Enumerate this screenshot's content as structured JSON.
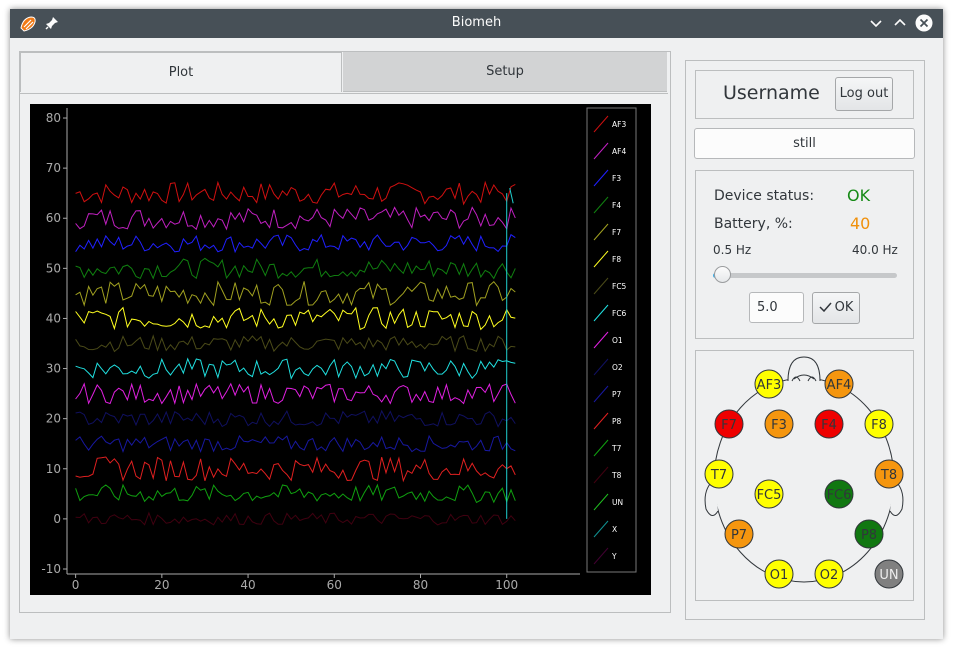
{
  "window": {
    "title": "Biomeh"
  },
  "tabs": [
    {
      "label": "Plot"
    },
    {
      "label": "Setup"
    }
  ],
  "chart_data": {
    "type": "line",
    "xlim": [
      -2,
      117
    ],
    "ylim": [
      -11,
      82
    ],
    "x_ticks": [
      0,
      20,
      40,
      60,
      80,
      100
    ],
    "y_ticks": [
      -10,
      0,
      10,
      20,
      30,
      40,
      50,
      60,
      70,
      80
    ],
    "legend_position": "right",
    "series": [
      {
        "name": "AF3",
        "color": "#d01010",
        "offset": 65,
        "amp": 2.2
      },
      {
        "name": "AF4",
        "color": "#c020c0",
        "offset": 60,
        "amp": 2.2
      },
      {
        "name": "F3",
        "color": "#2020ff",
        "offset": 55,
        "amp": 1.8
      },
      {
        "name": "F4",
        "color": "#108010",
        "offset": 50,
        "amp": 2.0
      },
      {
        "name": "F7",
        "color": "#a0a020",
        "offset": 45,
        "amp": 2.4
      },
      {
        "name": "F8",
        "color": "#ffff20",
        "offset": 40,
        "amp": 2.2
      },
      {
        "name": "FC5",
        "color": "#4a4a18",
        "offset": 35,
        "amp": 1.6
      },
      {
        "name": "FC6",
        "color": "#20e0e0",
        "offset": 30,
        "amp": 2.0
      },
      {
        "name": "O1",
        "color": "#e020e0",
        "offset": 25,
        "amp": 2.0
      },
      {
        "name": "O2",
        "color": "#101060",
        "offset": 20,
        "amp": 1.6
      },
      {
        "name": "P7",
        "color": "#1818a0",
        "offset": 15,
        "amp": 1.6
      },
      {
        "name": "P8",
        "color": "#e02020",
        "offset": 10,
        "amp": 2.4
      },
      {
        "name": "T7",
        "color": "#10a010",
        "offset": 5,
        "amp": 1.8
      },
      {
        "name": "T8",
        "color": "#400010",
        "offset": 0,
        "amp": 1.2
      },
      {
        "name": "UN",
        "color": "#20c020",
        "offset": null,
        "amp": 0
      },
      {
        "name": "X",
        "color": "#109090",
        "offset": null,
        "amp": 0
      },
      {
        "name": "Y",
        "color": "#400030",
        "offset": null,
        "amp": 0
      }
    ],
    "x_start": 0,
    "x_end": 102,
    "cursor_x": 100
  },
  "user": {
    "name": "Username",
    "logout_label": "Log out"
  },
  "state_field": {
    "value": "still"
  },
  "device": {
    "status_label": "Device status:",
    "status_value": "OK",
    "status_color": "#168a16",
    "battery_label": "Battery, %:",
    "battery_value": "40",
    "battery_color": "#f0900a"
  },
  "filter": {
    "min_label": "0.5 Hz",
    "max_label": "40.0 Hz",
    "slider_value_fraction": 0.05,
    "value": "5.0",
    "ok_label": "OK"
  },
  "electrodes": [
    {
      "name": "AF3",
      "color": "#ffff00",
      "text": "#31363b"
    },
    {
      "name": "AF4",
      "color": "#f5960f",
      "text": "#31363b"
    },
    {
      "name": "F7",
      "color": "#ee0000",
      "text": "#31363b"
    },
    {
      "name": "F3",
      "color": "#f5960f",
      "text": "#31363b"
    },
    {
      "name": "F4",
      "color": "#ee0000",
      "text": "#31363b"
    },
    {
      "name": "F8",
      "color": "#ffff00",
      "text": "#31363b"
    },
    {
      "name": "T7",
      "color": "#ffff00",
      "text": "#31363b"
    },
    {
      "name": "T8",
      "color": "#f5960f",
      "text": "#31363b"
    },
    {
      "name": "FC5",
      "color": "#ffff00",
      "text": "#31363b"
    },
    {
      "name": "FC6",
      "color": "#117711",
      "text": "#31363b"
    },
    {
      "name": "P7",
      "color": "#f5960f",
      "text": "#31363b"
    },
    {
      "name": "P8",
      "color": "#117711",
      "text": "#31363b"
    },
    {
      "name": "O1",
      "color": "#ffff00",
      "text": "#31363b"
    },
    {
      "name": "O2",
      "color": "#ffff00",
      "text": "#31363b"
    },
    {
      "name": "UN",
      "color": "#808080",
      "text": "#eeeeee"
    }
  ]
}
